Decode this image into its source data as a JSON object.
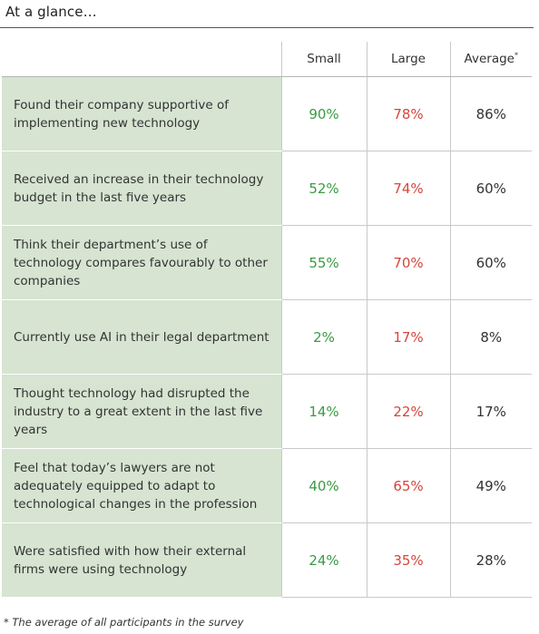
{
  "heading": "At a glance…",
  "table": {
    "columns": {
      "small": "Small",
      "large": "Large",
      "average": "Average",
      "average_marker": "*"
    },
    "rows": [
      {
        "label": "Found their company supportive of implementing new technology",
        "small": "90%",
        "large": "78%",
        "average": "86%"
      },
      {
        "label": "Received an increase in their technology budget in the last five years",
        "small": "52%",
        "large": "74%",
        "average": "60%"
      },
      {
        "label": "Think their department’s use of technology compares favourably to other companies",
        "small": "55%",
        "large": "70%",
        "average": "60%"
      },
      {
        "label": "Currently use AI in their legal department",
        "small": "2%",
        "large": "17%",
        "average": "8%"
      },
      {
        "label": "Thought technology had disrupted the industry to a great extent in the last five years",
        "small": "14%",
        "large": "22%",
        "average": "17%"
      },
      {
        "label": "Feel that today’s lawyers are not adequately equipped to adapt to technological changes in the profession",
        "small": "40%",
        "large": "65%",
        "average": "49%"
      },
      {
        "label": "Were satisfied with how their external firms were using technology",
        "small": "24%",
        "large": "35%",
        "average": "28%"
      }
    ]
  },
  "footnote": "* The average of all participants in the survey",
  "colors": {
    "label_bg": "#d6e4d1",
    "small": "#3a9a44",
    "large": "#d6453c",
    "average": "#333333"
  }
}
